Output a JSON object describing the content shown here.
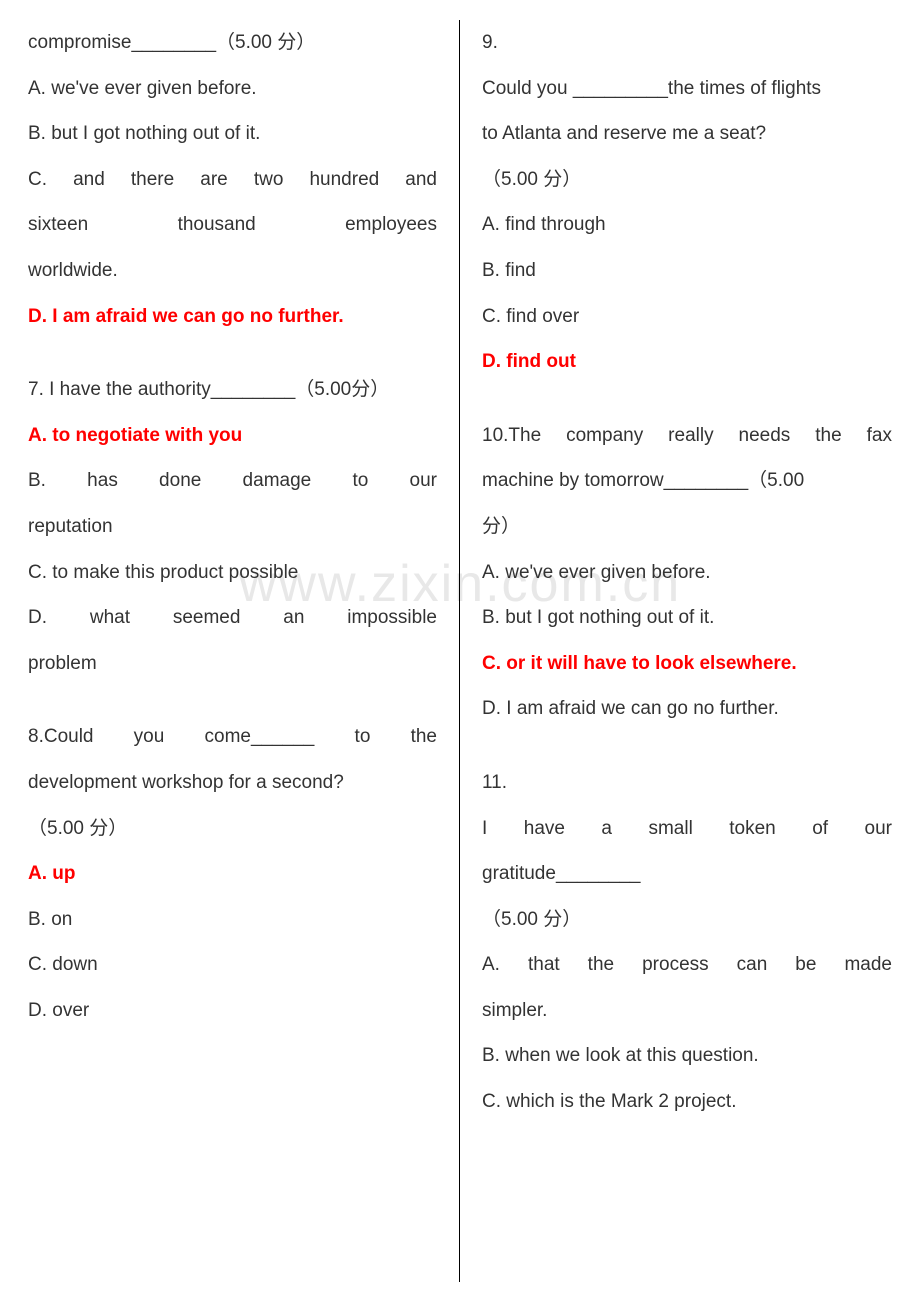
{
  "watermark": "www.zixin.com.cn",
  "left": {
    "q6": {
      "stem_line": "compromise________（5.00 分）",
      "a": "A. we've ever given before.",
      "b": "B. but I got nothing out of it.",
      "c_l1": "C. and there are two hundred and",
      "c_l2": "sixteen thousand employees",
      "c_l3": "worldwide.",
      "d": "D. I am afraid we can go no further."
    },
    "q7": {
      "stem": "7. I have the authority________（5.00分）",
      "a": "A. to negotiate with you",
      "b_l1": "B. has done damage to our",
      "b_l2": "reputation",
      "c": "C. to make this product possible",
      "d_l1": "D. what seemed an impossible",
      "d_l2": "problem"
    },
    "q8": {
      "stem_l1": "8.Could you come______ to the",
      "stem_l2": "development workshop for a second?",
      "stem_l3": "（5.00 分）",
      "a": "A. up",
      "b": "B. on",
      "c": "C. down",
      "d": "D. over"
    }
  },
  "right": {
    "q9": {
      "num": "9.",
      "stem_l1": "Could you _________the times of flights",
      "stem_l2": "to Atlanta and reserve me a seat?",
      "stem_l3": "（5.00 分）",
      "a": "A. find through",
      "b": "B. find",
      "c": "C. find over",
      "d": "D. find out"
    },
    "q10": {
      "stem_l1": "10.The company really needs the fax",
      "stem_l2": "machine by tomorrow________（5.00",
      "stem_l3": "分）",
      "a": "A. we've ever given before.",
      "b": "B. but I got nothing out of it.",
      "c": "C. or it will have to look elsewhere.",
      "d": "D. I am afraid we can go no further."
    },
    "q11": {
      "num": "11.",
      "stem_l1": " I have a small token of our",
      "stem_l2": "gratitude________",
      "stem_l3": "（5.00 分）",
      "a_l1": "A. that the process can be made",
      "a_l2": "simpler.",
      "b": "B. when we look at this question.",
      "c": "C. which is the Mark 2 project."
    }
  }
}
